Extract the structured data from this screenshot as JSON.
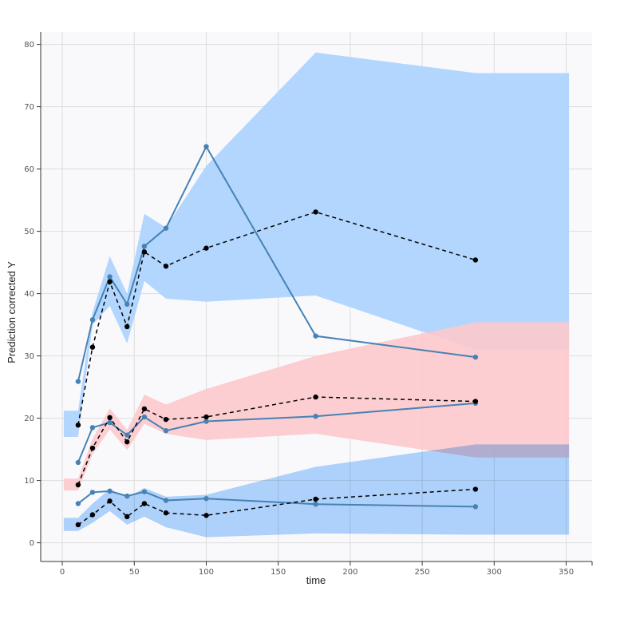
{
  "chart_data": {
    "type": "line",
    "xlabel": "time",
    "ylabel": "Prediction corrected Y",
    "xlim": [
      -15,
      368
    ],
    "ylim": [
      -3,
      82
    ],
    "xticks": [
      0,
      50,
      100,
      150,
      200,
      250,
      300,
      350
    ],
    "yticks": [
      0,
      10,
      20,
      30,
      40,
      50,
      60,
      70,
      80
    ],
    "grid": true,
    "colors": {
      "plot_background": "#f9f9fc",
      "grid": "#dddddd",
      "outer_band": "#aed4fe",
      "median_band": "#fcc9cc",
      "overlap": "#b1b2db",
      "observed": "#4682b4",
      "simulated": "#000000"
    },
    "bands": [
      {
        "role": "upper-percentile interval",
        "color": "#aed4fe",
        "x": [
          1,
          11,
          21,
          33,
          45,
          57,
          72,
          100,
          176,
          287,
          352
        ],
        "lower": [
          17,
          17,
          35,
          38,
          32,
          42,
          39.2,
          38.7,
          39.7,
          31,
          31
        ],
        "upper": [
          21.2,
          21.2,
          37,
          46,
          40,
          52.8,
          50.6,
          60.5,
          78.7,
          75.4,
          75.4
        ]
      },
      {
        "role": "median interval",
        "color": "#fcc9cc",
        "x": [
          1,
          11,
          21,
          33,
          45,
          57,
          72,
          100,
          176,
          287,
          352
        ],
        "lower": [
          8.4,
          8.4,
          14.2,
          18.2,
          14.9,
          19.1,
          17.5,
          16.5,
          17.5,
          13.7,
          13.7
        ],
        "upper": [
          10.3,
          10.3,
          16.7,
          21.6,
          18.1,
          23.8,
          22.2,
          24.7,
          30,
          35.4,
          35.4
        ]
      },
      {
        "role": "lower-percentile interval",
        "color": "#aed4fe",
        "x": [
          1,
          11,
          21,
          33,
          45,
          57,
          72,
          100,
          176,
          287,
          352
        ],
        "lower": [
          1.9,
          1.9,
          3.2,
          5.1,
          2.9,
          4.2,
          2.5,
          0.9,
          1.5,
          1.3,
          1.3
        ],
        "upper": [
          4,
          4,
          6.3,
          8.6,
          7.3,
          8.8,
          7.4,
          7.7,
          12.2,
          15.8,
          15.8
        ]
      }
    ],
    "series": [
      {
        "role": "observed upper percentile",
        "style": "solid",
        "color": "#4682b4",
        "x": [
          11,
          21,
          33,
          45,
          57,
          72,
          100,
          176,
          287
        ],
        "y": [
          25.9,
          35.8,
          42.7,
          38.3,
          47.6,
          50.5,
          63.6,
          33.2,
          29.8
        ]
      },
      {
        "role": "observed median",
        "style": "solid",
        "color": "#4682b4",
        "x": [
          11,
          21,
          33,
          45,
          57,
          72,
          100,
          176,
          287
        ],
        "y": [
          12.9,
          18.5,
          19.3,
          17.3,
          20.2,
          18,
          19.5,
          20.3,
          22.4
        ]
      },
      {
        "role": "observed lower percentile",
        "style": "solid",
        "color": "#4682b4",
        "x": [
          11,
          21,
          33,
          45,
          57,
          72,
          100,
          176,
          287
        ],
        "y": [
          6.3,
          8.1,
          8.3,
          7.5,
          8.2,
          6.8,
          7.1,
          6.2,
          5.8
        ]
      },
      {
        "role": "simulated upper percentile",
        "style": "dashed",
        "color": "#000000",
        "x": [
          11,
          21,
          33,
          45,
          57,
          72,
          100,
          176,
          287
        ],
        "y": [
          18.9,
          31.4,
          41.9,
          34.7,
          46.7,
          44.4,
          47.3,
          53.1,
          45.4
        ]
      },
      {
        "role": "simulated median",
        "style": "dashed",
        "color": "#000000",
        "x": [
          11,
          21,
          33,
          45,
          57,
          72,
          100,
          176,
          287
        ],
        "y": [
          9.3,
          15.2,
          20.1,
          16.2,
          21.5,
          19.8,
          20.2,
          23.4,
          22.7
        ]
      },
      {
        "role": "simulated lower percentile",
        "style": "dashed",
        "color": "#000000",
        "x": [
          11,
          21,
          33,
          45,
          57,
          72,
          100,
          176,
          287
        ],
        "y": [
          2.9,
          4.5,
          6.7,
          4.2,
          6.3,
          4.8,
          4.4,
          7,
          8.6
        ]
      }
    ]
  }
}
